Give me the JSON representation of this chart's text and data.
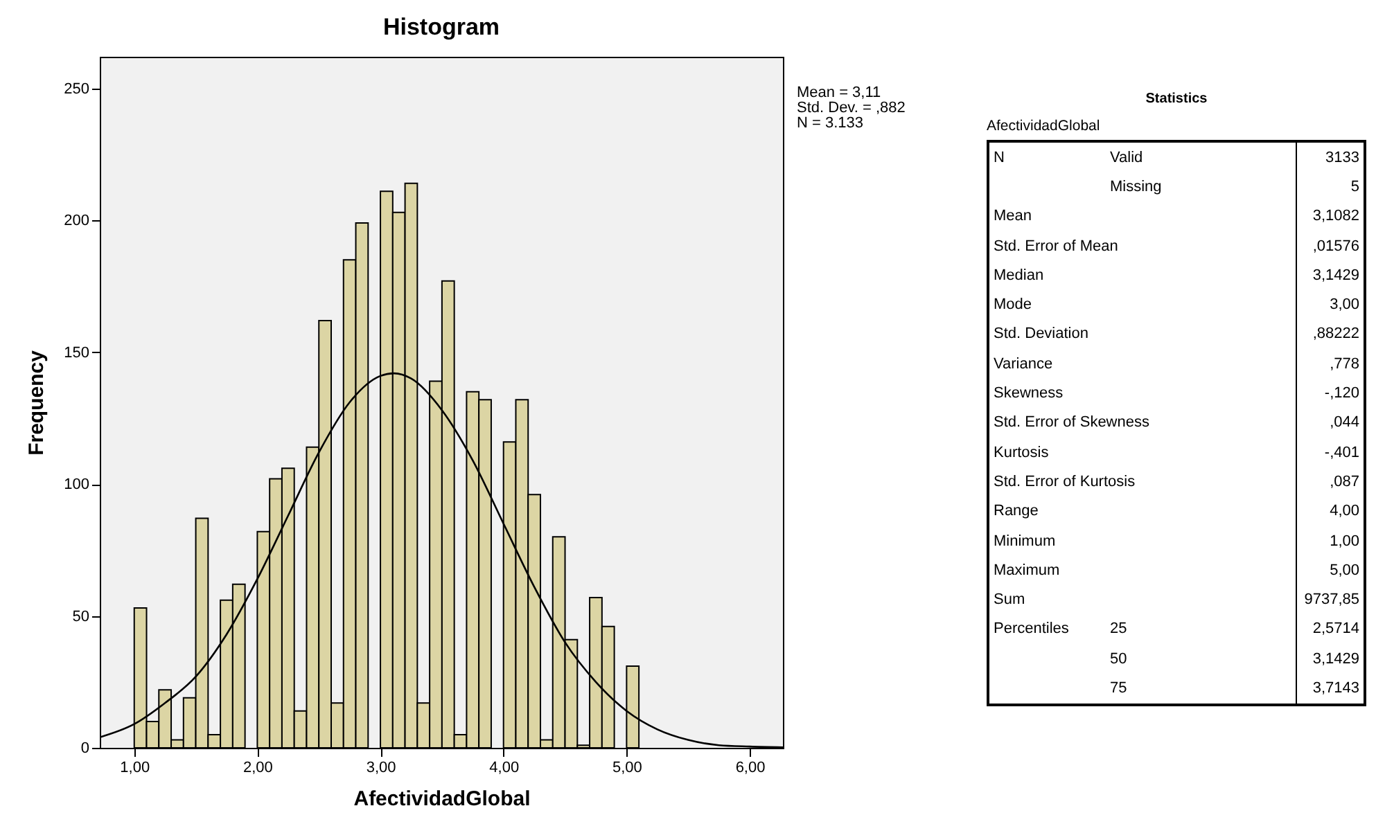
{
  "chart_data": [
    {
      "type": "histogram",
      "title": "Histogram",
      "xlabel": "AfectividadGlobal",
      "ylabel": "Frequency",
      "color": "#dcd5a4",
      "bins": [
        1.0,
        1.1,
        1.2,
        1.3,
        1.4,
        1.5,
        1.6,
        1.7,
        1.8,
        1.9,
        2.0,
        2.1,
        2.2,
        2.3,
        2.4,
        2.5,
        2.6,
        2.7,
        2.8,
        2.9,
        3.0,
        3.1,
        3.2,
        3.3,
        3.4,
        3.5,
        3.6,
        3.7,
        3.8,
        3.9,
        4.0,
        4.1,
        4.2,
        4.3,
        4.4,
        4.5,
        4.6,
        4.7,
        4.8,
        4.9,
        5.0,
        5.1
      ],
      "values": [
        53,
        10,
        22,
        3,
        19,
        87,
        5,
        56,
        62,
        0,
        82,
        102,
        106,
        14,
        114,
        162,
        17,
        185,
        199,
        0,
        211,
        203,
        214,
        17,
        139,
        177,
        5,
        135,
        132,
        0,
        116,
        132,
        96,
        3,
        80,
        41,
        1,
        57,
        46,
        0,
        31
      ],
      "series": [
        {
          "type": "line",
          "color": "#000000",
          "x": [
            0.72,
            1.0,
            1.25,
            1.5,
            1.75,
            2.0,
            2.25,
            2.5,
            2.75,
            3.0,
            3.11,
            3.25,
            3.5,
            3.75,
            4.0,
            4.25,
            4.5,
            4.75,
            5.0,
            5.25,
            5.5,
            5.75,
            6.0,
            6.27
          ],
          "values": [
            4,
            9,
            17,
            27,
            43,
            64,
            88,
            112,
            131,
            141,
            142,
            140,
            128,
            109,
            85,
            61,
            40,
            25,
            14,
            7,
            3,
            1,
            0.5,
            0.2
          ]
        }
      ],
      "xlim": [
        0.72,
        6.27
      ],
      "ylim": [
        0,
        262
      ],
      "xticks": [
        {
          "value": 1,
          "label": "1,00"
        },
        {
          "value": 2,
          "label": "2,00"
        },
        {
          "value": 3,
          "label": "3,00"
        },
        {
          "value": 4,
          "label": "4,00"
        },
        {
          "value": 5,
          "label": "5,00"
        },
        {
          "value": 6,
          "label": "6,00"
        }
      ],
      "yticks": [
        0,
        50,
        100,
        150,
        200,
        250
      ],
      "annotations": [
        "Mean = 3,11",
        "Std. Dev. = ,882",
        "N = 3.133"
      ]
    },
    {
      "type": "other",
      "title": "Statistics",
      "subtitle": "AfectividadGlobal",
      "cell_labels": [
        [
          "N",
          "Valid",
          "3133"
        ],
        [
          null,
          "Missing",
          "5"
        ],
        [
          "Mean",
          null,
          "3,1082"
        ],
        [
          "Std. Error of Mean",
          null,
          ",01576"
        ],
        [
          "Median",
          null,
          "3,1429"
        ],
        [
          "Mode",
          null,
          "3,00"
        ],
        [
          "Std. Deviation",
          null,
          ",88222"
        ],
        [
          "Variance",
          null,
          ",778"
        ],
        [
          "Skewness",
          null,
          "-,120"
        ],
        [
          "Std. Error of Skewness",
          null,
          ",044"
        ],
        [
          "Kurtosis",
          null,
          "-,401"
        ],
        [
          "Std. Error of Kurtosis",
          null,
          ",087"
        ],
        [
          "Range",
          null,
          "4,00"
        ],
        [
          "Minimum",
          null,
          "1,00"
        ],
        [
          "Maximum",
          null,
          "5,00"
        ],
        [
          "Sum",
          null,
          "9737,85"
        ],
        [
          "Percentiles",
          "25",
          "2,5714"
        ],
        [
          null,
          "50",
          "3,1429"
        ],
        [
          null,
          "75",
          "3,7143"
        ]
      ]
    }
  ]
}
